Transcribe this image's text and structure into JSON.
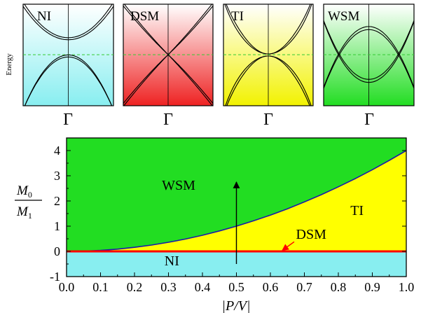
{
  "energy_label": "Energy",
  "colors": {
    "wsm_region": "#22dd22",
    "ti_region": "#ffff00",
    "ni_region": "#88eef0",
    "dsm_line": "#ff0000",
    "boundary": "#1a1aaa",
    "fermi_level": "#33cc33"
  },
  "panels": [
    {
      "label": "NI",
      "k_label": "Γ",
      "gradient_top": "#ffffff",
      "gradient_bottom": "#88eef0"
    },
    {
      "label": "DSM",
      "k_label": "Γ",
      "gradient_top": "#ffffff",
      "gradient_bottom": "#ee2222"
    },
    {
      "label": "TI",
      "k_label": "Γ",
      "gradient_top": "#ffffff",
      "gradient_bottom": "#f2f200"
    },
    {
      "label": "WSM",
      "k_label": "Γ",
      "gradient_top": "#ffffff",
      "gradient_bottom": "#22dd22"
    }
  ],
  "chart_data": {
    "type": "area",
    "title": "",
    "xlabel": "|P/V|",
    "ylabel": "M0/M1",
    "ylabel_parts": {
      "num_main": "M",
      "num_sub": "0",
      "den_main": "M",
      "den_sub": "1"
    },
    "xlim": [
      0.0,
      1.0
    ],
    "ylim": [
      -1,
      4.5
    ],
    "x_ticks": [
      "0.0",
      "0.1",
      "0.2",
      "0.3",
      "0.4",
      "0.5",
      "0.6",
      "0.7",
      "0.8",
      "0.9",
      "1.0"
    ],
    "y_ticks": [
      "-1",
      "0",
      "1",
      "2",
      "3",
      "4"
    ],
    "boundary_curve": {
      "x": [
        0.0,
        0.05,
        0.1,
        0.15,
        0.2,
        0.25,
        0.3,
        0.35,
        0.4,
        0.45,
        0.5,
        0.55,
        0.6,
        0.65,
        0.7,
        0.75,
        0.8,
        0.85,
        0.9,
        0.95,
        1.0
      ],
      "y": [
        0.0,
        0.01,
        0.04,
        0.09,
        0.16,
        0.25,
        0.36,
        0.49,
        0.64,
        0.81,
        1.0,
        1.21,
        1.44,
        1.69,
        1.96,
        2.25,
        2.56,
        2.89,
        3.24,
        3.61,
        4.0
      ]
    },
    "dsm_line": {
      "y": 0.0,
      "x_range": [
        0.0,
        1.0
      ]
    },
    "region_labels": [
      {
        "text": "WSM",
        "x": 0.33,
        "y": 2.45
      },
      {
        "text": "TI",
        "x": 0.855,
        "y": 1.45
      },
      {
        "text": "DSM",
        "x": 0.72,
        "y": 0.5
      },
      {
        "text": "NI",
        "x": 0.31,
        "y": -0.55
      }
    ],
    "arrows": [
      {
        "from": [
          0.5,
          -0.5
        ],
        "to": [
          0.5,
          2.75
        ],
        "color": "#000000"
      },
      {
        "from": [
          0.67,
          0.38
        ],
        "to": [
          0.635,
          0.04
        ],
        "color": "#ff0000"
      }
    ]
  }
}
